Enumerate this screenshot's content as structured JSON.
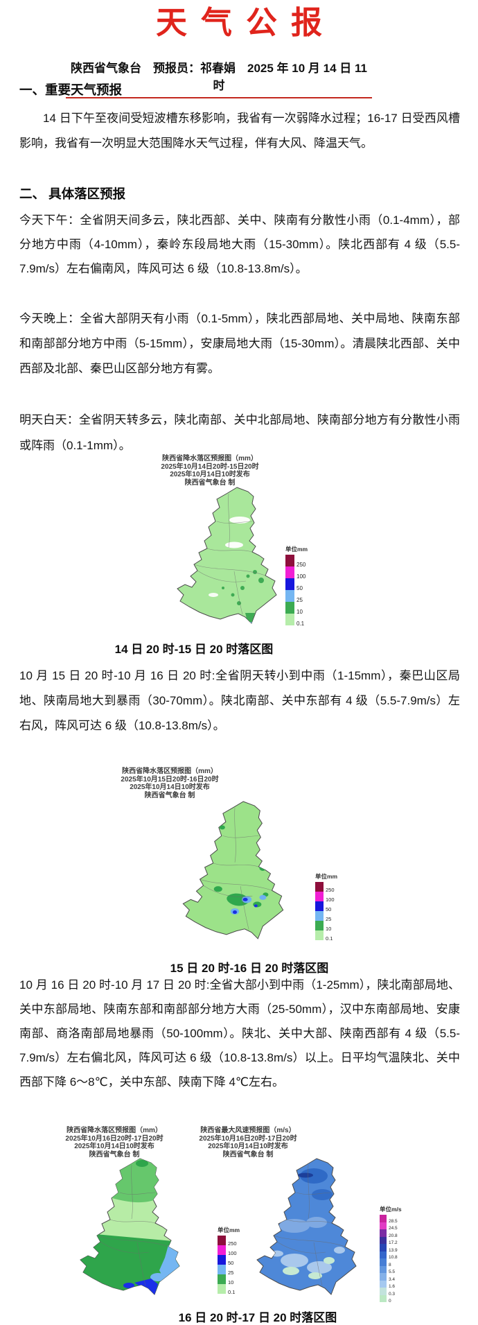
{
  "page": {
    "title": "天气公报",
    "byline": "陕西省气象台　预报员：祁春娟　2025 年 10 月 14 日 11 时"
  },
  "sections": {
    "h1": "一、重要天气预报",
    "p1": "14 日下午至夜间受短波槽东移影响，我省有一次弱降水过程；16-17 日受西风槽影响，我省有一次明显大范围降水天气过程，伴有大风、降温天气。",
    "h2": "二、 具体落区预报",
    "p_afternoon": "今天下午：全省阴天间多云，陕北西部、关中、陕南有分散性小雨（0.1-4mm），部分地方中雨（4-10mm），秦岭东段局地大雨（15-30mm）。陕北西部有 4 级（5.5-7.9m/s）左右偏南风，阵风可达 6 级（10.8-13.8m/s）。",
    "p_tonight": "今天晚上：全省大部阴天有小雨（0.1-5mm），陕北西部局地、关中局地、陕南东部和南部部分地方中雨（5-15mm），安康局地大雨（15-30mm）。清晨陕北西部、关中西部及北部、秦巴山区部分地方有雾。",
    "p_tomorrow": "明天白天：全省阴天转多云，陕北南部、关中北部局地、陕南部分地方有分散性小雨或阵雨（0.1-1mm）。",
    "p_day16": "10 月 15 日 20 时-10 月 16 日 20 时:全省阴天转小到中雨（1-15mm），秦巴山区局地、陕南局地大到暴雨（30-70mm）。陕北南部、关中东部有 4 级（5.5-7.9m/s）左右风，阵风可达 6 级（10.8-13.8m/s）。",
    "p_day17": "10 月 16 日 20 时-10 月 17 日 20 时:全省大部小到中雨（1-25mm），陕北南部局地、关中东部局地、陕南东部和南部部分地方大雨（25-50mm），汉中东南部局地、安康南部、商洛南部局地暴雨（50-100mm）。陕北、关中大部、陕南西部有 4 级（5.5-7.9m/s）左右偏北风，阵风可达 6 级（10.8-13.8m/s）以上。日平均气温陕北、关中西部下降 6～8℃，关中东部、陕南下降 4℃左右。"
  },
  "maps": {
    "map1": {
      "header": [
        "陕西省降水落区预报图（mm）",
        "2025年10月14日20时-15日20时",
        "2025年10月14日10时发布",
        "陕西省气象台  制"
      ],
      "caption": "14 日 20 时-15 日 20 时落区图"
    },
    "map2": {
      "header": [
        "陕西省降水落区预报图（mm）",
        "2025年10月15日20时-16日20时",
        "2025年10月14日10时发布",
        "陕西省气象台  制"
      ],
      "caption": "15 日 20 时-16 日 20 时落区图"
    },
    "map3": {
      "header": [
        "陕西省降水落区预报图（mm）",
        "2025年10月16日20时-17日20时",
        "2025年10月14日10时发布",
        "陕西省气象台  制"
      ]
    },
    "map4": {
      "header": [
        "陕西省最大风速预报图（m/s）",
        "2025年10月16日20时-17日20时",
        "2025年10月14日10时发布",
        "陕西省气象台  制"
      ]
    },
    "caption_bottom": "16 日 20 时-17 日 20 时落区图"
  },
  "legend_mm": {
    "title": "单位mm",
    "items": [
      {
        "value": "250",
        "color": "#8E0F3C"
      },
      {
        "value": "100",
        "color": "#F11FD4"
      },
      {
        "value": "50",
        "color": "#1717DD"
      },
      {
        "value": "25",
        "color": "#74B6F2"
      },
      {
        "value": "10",
        "color": "#3CAB52"
      },
      {
        "value": "0.1",
        "color": "#B6EDAA"
      }
    ]
  },
  "legend_ms": {
    "title": "单位m/s",
    "items": [
      {
        "value": "28.5",
        "color": "#C9239E"
      },
      {
        "value": "24.5",
        "color": "#E13CC4"
      },
      {
        "value": "20.8",
        "color": "#7B2CA4"
      },
      {
        "value": "17.2",
        "color": "#3A2F9C"
      },
      {
        "value": "13.9",
        "color": "#2845B4"
      },
      {
        "value": "10.8",
        "color": "#3566CB"
      },
      {
        "value": "8",
        "color": "#477ED5"
      },
      {
        "value": "5.5",
        "color": "#6397DF"
      },
      {
        "value": "3.4",
        "color": "#85B1E8"
      },
      {
        "value": "1.6",
        "color": "#A5C9F0"
      },
      {
        "value": "0.3",
        "color": "#C2E3DC"
      },
      {
        "value": "0",
        "color": "#BBE8C3"
      }
    ]
  },
  "colors": {
    "accent_red": "#E0241C",
    "underline_red": "#C3271E",
    "map1_base": "#A9E79B",
    "map2_base": "#9CE289",
    "map3_base": "#B7ECA6",
    "map4_base": "#4E88D8",
    "rain_dark_green": "#2FA84D",
    "rain_light_blue": "#74B6F2",
    "rain_dark_blue": "#1B2FE0"
  }
}
